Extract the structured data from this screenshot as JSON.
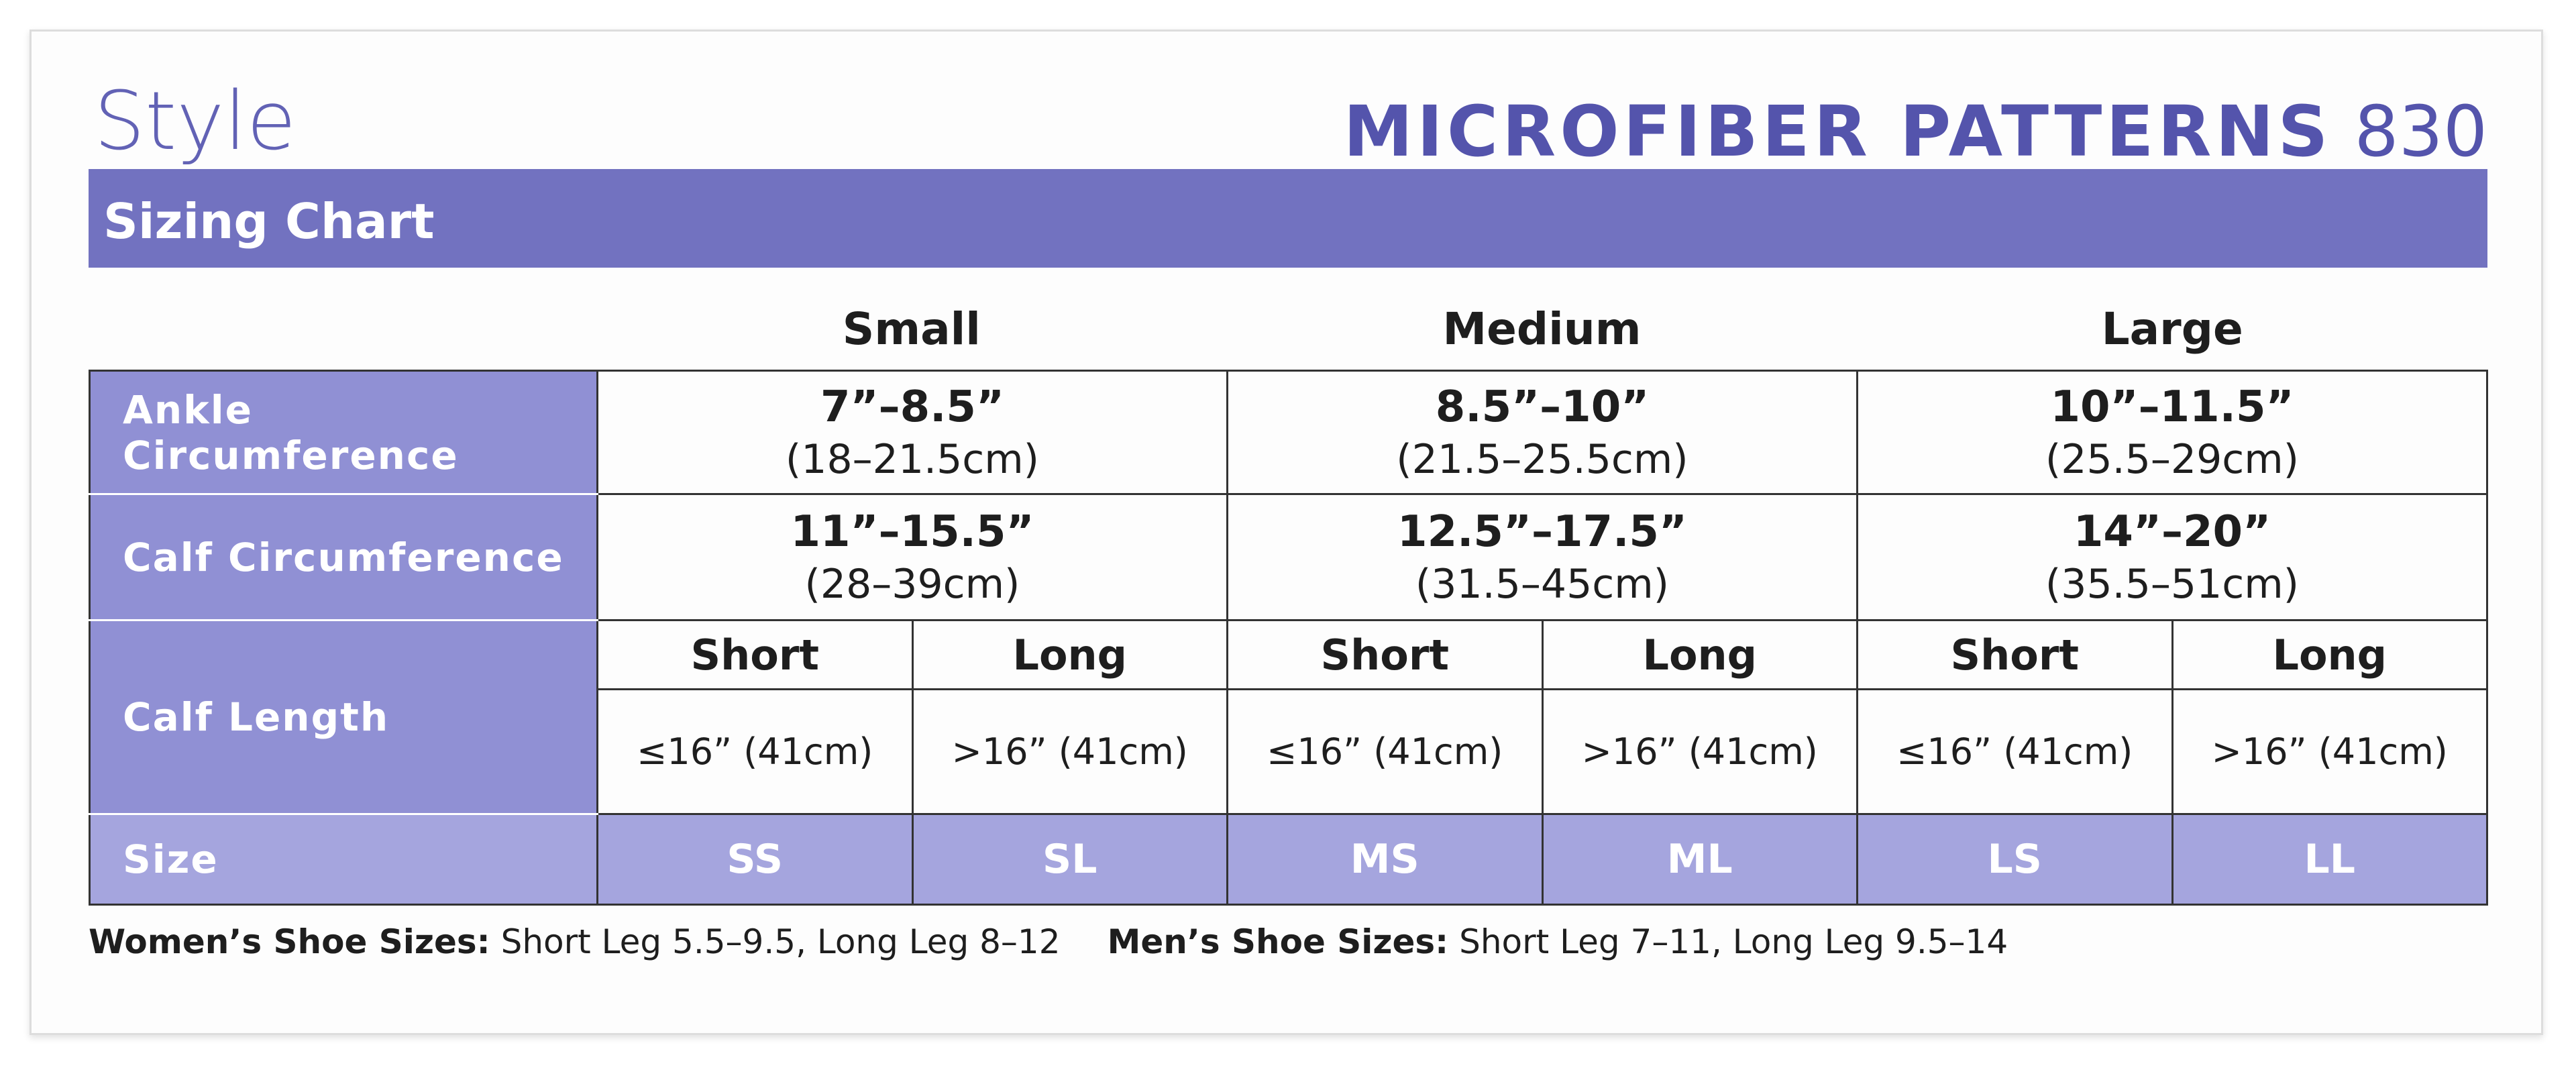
{
  "header": {
    "style_label": "Style",
    "title_bold": "MICROFIBER PATTERNS",
    "title_number": "830"
  },
  "banner": {
    "title": "Sizing Chart"
  },
  "table": {
    "columns": [
      "Small",
      "Medium",
      "Large"
    ],
    "ankle": {
      "label": "Ankle Circumference",
      "cells": [
        {
          "primary": "7”–8.5”",
          "secondary": "(18–21.5cm)"
        },
        {
          "primary": "8.5”–10”",
          "secondary": "(21.5–25.5cm)"
        },
        {
          "primary": "10”–11.5”",
          "secondary": "(25.5–29cm)"
        }
      ]
    },
    "calf": {
      "label": "Calf Circumference",
      "cells": [
        {
          "primary": "11”–15.5”",
          "secondary": "(28–39cm)"
        },
        {
          "primary": "12.5”–17.5”",
          "secondary": "(31.5–45cm)"
        },
        {
          "primary": "14”–20”",
          "secondary": "(35.5–51cm)"
        }
      ]
    },
    "calf_length": {
      "label": "Calf Length",
      "subcolumns": [
        "Short",
        "Long",
        "Short",
        "Long",
        "Short",
        "Long"
      ],
      "values": [
        "≤16” (41cm)",
        ">16” (41cm)",
        "≤16” (41cm)",
        ">16” (41cm)",
        "≤16” (41cm)",
        ">16” (41cm)"
      ]
    },
    "size": {
      "label": "Size",
      "values": [
        "SS",
        "SL",
        "MS",
        "ML",
        "LS",
        "LL"
      ]
    }
  },
  "footer": {
    "notes": [
      {
        "label": "Women’s Shoe Sizes:",
        "text": "Short Leg 5.5–9.5, Long Leg 8–12"
      },
      {
        "label": "Men’s Shoe Sizes:",
        "text": "Short Leg 7–11, Long Leg 9.5–14"
      }
    ]
  }
}
